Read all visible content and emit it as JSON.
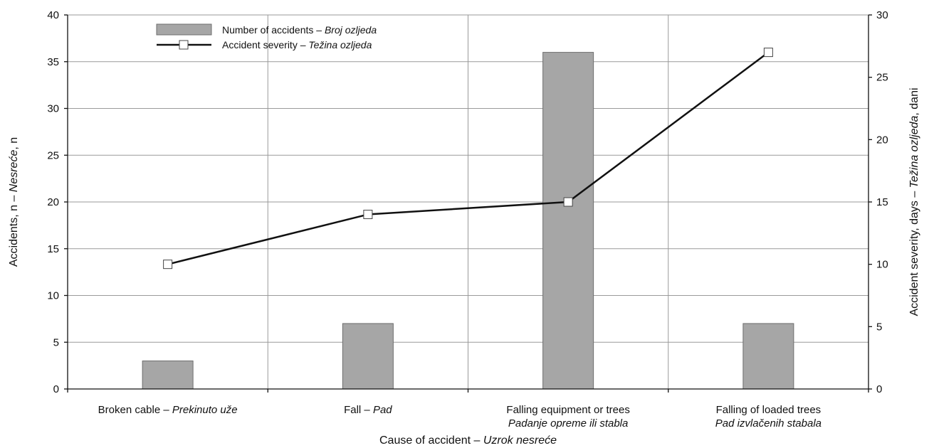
{
  "chart_data": {
    "type": "bar",
    "categories": [
      {
        "en": "Broken cable",
        "hr": "Prekinuto uže"
      },
      {
        "en": "Fall",
        "hr": "Pad"
      },
      {
        "en": "Falling equipment or trees",
        "hr": "Padanje opreme ili stabla"
      },
      {
        "en": "Falling of loaded trees",
        "hr": "Pad izvlačenih stabala"
      }
    ],
    "series": [
      {
        "name": "Number of accidents",
        "name_hr": "Broj ozljeda",
        "type": "bar",
        "axis": "left",
        "values": [
          3,
          7,
          36,
          7
        ],
        "color": "#a6a6a6"
      },
      {
        "name": "Accident severity",
        "name_hr": "Težina ozljeda",
        "type": "line",
        "axis": "right",
        "values": [
          10,
          14,
          15,
          27
        ],
        "color": "#111111"
      }
    ],
    "xlabel": {
      "en": "Cause of accident",
      "hr": "Uzrok nesreće"
    },
    "ylabel_left": {
      "pre": "Accidents, n – ",
      "it": "Nesreće",
      "post": ", n"
    },
    "ylabel_right": {
      "pre": "Accident severity, days – ",
      "it": "Težina ozljeda",
      "post": ", dani"
    },
    "ylim_left": [
      0,
      40
    ],
    "yticks_left": [
      0,
      5,
      10,
      15,
      20,
      25,
      30,
      35,
      40
    ],
    "ylim_right": [
      0,
      30
    ],
    "yticks_right": [
      0,
      5,
      10,
      15,
      20,
      25,
      30
    ],
    "separator": " – ",
    "grid": true,
    "legend_position": "top-left"
  }
}
